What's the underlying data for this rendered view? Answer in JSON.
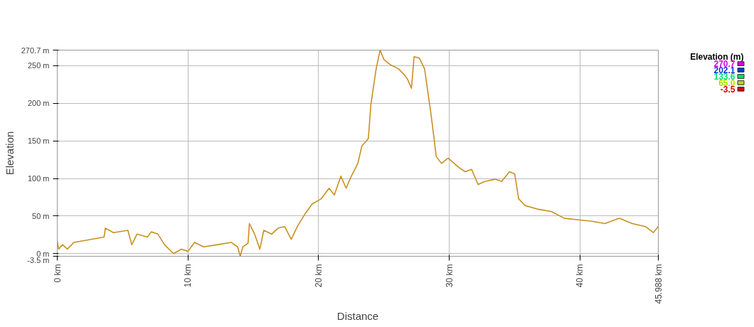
{
  "chart_data": {
    "type": "line",
    "xlabel": "Distance",
    "ylabel": "Elevation",
    "clabel": "Elevation (m)",
    "x": [
      0,
      0.1,
      0.4,
      0.77,
      1.28,
      3.58,
      3.68,
      4.3,
      5.4,
      5.7,
      6.1,
      6.9,
      7.2,
      7.7,
      8.2,
      8.9,
      9.5,
      10.0,
      10.5,
      11.2,
      12.3,
      13.3,
      13.8,
      14.0,
      14.2,
      14.6,
      14.7,
      15.1,
      15.5,
      15.8,
      16.4,
      16.9,
      17.4,
      17.9,
      18.4,
      19.0,
      19.5,
      20.2,
      20.8,
      21.2,
      21.7,
      22.1,
      22.5,
      23.0,
      23.3,
      23.8,
      24.0,
      24.4,
      24.7,
      25.0,
      25.5,
      26.1,
      26.6,
      26.8,
      27.1,
      27.3,
      27.7,
      28.1,
      28.6,
      29.0,
      29.4,
      29.9,
      30.7,
      31.2,
      31.7,
      32.2,
      32.7,
      33.5,
      34.0,
      34.6,
      35.0,
      35.3,
      35.8,
      36.8,
      37.8,
      38.8,
      39.9,
      40.9,
      41.9,
      43.0,
      44.0,
      45.0,
      45.6,
      45.988
    ],
    "series": [
      {
        "color": "#c89020",
        "values": [
          17,
          6,
          12,
          6,
          15,
          22,
          34,
          28,
          31,
          12,
          26,
          22,
          29,
          26,
          12,
          0,
          6,
          3,
          15,
          9,
          12,
          15,
          9,
          -3.5,
          9,
          14,
          40,
          26,
          6,
          31,
          26,
          34,
          36,
          19,
          37,
          54,
          66,
          73,
          87,
          78,
          103,
          87,
          103,
          120,
          143,
          153,
          199,
          246,
          270.7,
          258,
          251,
          246,
          237,
          232,
          220,
          262,
          260,
          246,
          185,
          129,
          120,
          127,
          115,
          109,
          112,
          92,
          96,
          99,
          96,
          109,
          106,
          73,
          64,
          59,
          56,
          47,
          45,
          43,
          40,
          47,
          40,
          36,
          28,
          36
        ]
      }
    ],
    "xlim": [
      0,
      45.988
    ],
    "xticks": [
      {
        "value": 0,
        "label": "0 km"
      },
      {
        "value": 10,
        "label": "10 km"
      },
      {
        "value": 20,
        "label": "20 km"
      },
      {
        "value": 30,
        "label": "30 km"
      },
      {
        "value": 40,
        "label": "40 km"
      },
      {
        "value": 45.988,
        "label": "45.988 km"
      }
    ],
    "ylim": [
      -3.5,
      270.7
    ],
    "yticks": [
      {
        "value": -3.5,
        "label": "-3.5 m"
      },
      {
        "value": 0,
        "label": "0 m"
      },
      {
        "value": 50,
        "label": "50 m"
      },
      {
        "value": 100,
        "label": "100 m"
      },
      {
        "value": 150,
        "label": "150 m"
      },
      {
        "value": 200,
        "label": "200 m"
      },
      {
        "value": 250,
        "label": "250 m"
      },
      {
        "value": 270.7,
        "label": "270.7 m"
      }
    ],
    "clim": [
      -3.5,
      270.7
    ],
    "cticks": [
      {
        "value": 270.7,
        "label": "270.7"
      },
      {
        "value": 202.1,
        "label": "202.1"
      },
      {
        "value": 133.6,
        "label": "133.6"
      },
      {
        "value": 65.0,
        "label": "65.0"
      },
      {
        "value": -3.5,
        "label": "-3.5"
      }
    ],
    "grid": true
  }
}
